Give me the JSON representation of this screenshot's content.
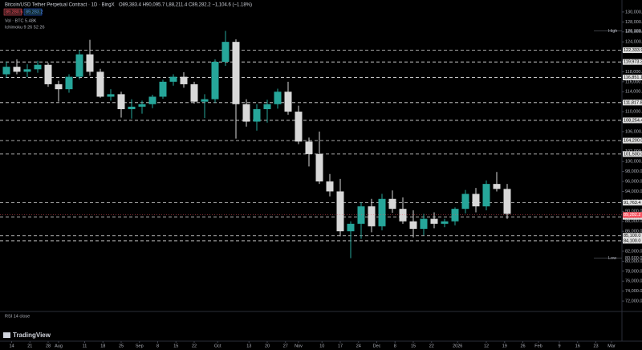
{
  "header": {
    "symbol": "Bitcoin/USD Tether Perpetual Contract · 1D · BingX",
    "ohlc": "O89,383.4 H90,095.7 L88,211.4 C89,282.2 −1,104.6 (−1.18%)",
    "sell": "89,280.5",
    "buy": "89,283.2",
    "volume": "Vol · BTC  5.48K",
    "indicator": "Ichimoku 9 26 52 26",
    "rsi": "RSI 14 close",
    "logo": "TradingView"
  },
  "chart_data": {
    "type": "candlestick",
    "up_color": "#26a69a",
    "down_color": "#d8d8d8",
    "ylim": [
      70400,
      132400
    ],
    "yticks": [
      {
        "value": 72000,
        "label": "72,000.0"
      },
      {
        "value": 74000,
        "label": "74,000.0"
      },
      {
        "value": 76000,
        "label": "76,000.0"
      },
      {
        "value": 78000,
        "label": "78,000.0"
      },
      {
        "value": 80000,
        "label": "80,000.0"
      },
      {
        "value": 82000,
        "label": "82,000.0"
      },
      {
        "value": 84000,
        "label": "84,000.0"
      },
      {
        "value": 86000,
        "label": "86,000.0"
      },
      {
        "value": 88000,
        "label": "88,000.0"
      },
      {
        "value": 90000,
        "label": "90,000.0"
      },
      {
        "value": 92000,
        "label": "92,000.0"
      },
      {
        "value": 94000,
        "label": "94,000.0"
      },
      {
        "value": 96000,
        "label": "96,000.0"
      },
      {
        "value": 98000,
        "label": "98,000.0"
      },
      {
        "value": 100000,
        "label": "100,000.0"
      },
      {
        "value": 102000,
        "label": "102,000.0"
      },
      {
        "value": 104000,
        "label": "104,000.0"
      },
      {
        "value": 106000,
        "label": "106,000.0"
      },
      {
        "value": 108000,
        "label": "108,000.0"
      },
      {
        "value": 110000,
        "label": "110,000.0"
      },
      {
        "value": 112000,
        "label": "112,000.0"
      },
      {
        "value": 114000,
        "label": "114,000.0"
      },
      {
        "value": 116000,
        "label": "116,000.0"
      },
      {
        "value": 118000,
        "label": "118,000.0"
      },
      {
        "value": 120000,
        "label": "120,000.0"
      },
      {
        "value": 122000,
        "label": "122,000.0"
      },
      {
        "value": 124000,
        "label": "124,000.0"
      },
      {
        "value": 126000,
        "label": "126,000.0"
      },
      {
        "value": 128000,
        "label": "128,000.0"
      },
      {
        "value": 130000,
        "label": "130,000.0"
      }
    ],
    "xticks": [
      {
        "value": "Jul 14",
        "label": "14"
      },
      {
        "value": "Jul 21",
        "label": "21"
      },
      {
        "value": "Jul 28",
        "label": "28"
      },
      {
        "value": "Aug 1",
        "label": "Aug"
      },
      {
        "value": "Aug 11",
        "label": "11"
      },
      {
        "value": "Aug 18",
        "label": "18"
      },
      {
        "value": "Aug 25",
        "label": "25"
      },
      {
        "value": "Sep 1",
        "label": "Sep"
      },
      {
        "value": "Sep 8",
        "label": "8"
      },
      {
        "value": "Sep 15",
        "label": "15"
      },
      {
        "value": "Sep 22",
        "label": "22"
      },
      {
        "value": "Oct 1",
        "label": "Oct"
      },
      {
        "value": "Oct 13",
        "label": "13"
      },
      {
        "value": "Oct 20",
        "label": "20"
      },
      {
        "value": "Oct 27",
        "label": "27"
      },
      {
        "value": "Nov 1",
        "label": "Nov"
      },
      {
        "value": "Nov 10",
        "label": "10"
      },
      {
        "value": "Nov 17",
        "label": "17"
      },
      {
        "value": "Nov 24",
        "label": "24"
      },
      {
        "value": "Dec 1",
        "label": "Dec"
      },
      {
        "value": "Dec 8",
        "label": "8"
      },
      {
        "value": "Dec 15",
        "label": "15"
      },
      {
        "value": "Dec 22",
        "label": "22"
      },
      {
        "value": "Jan 1",
        "label": "2026"
      },
      {
        "value": "Jan 12",
        "label": "12"
      },
      {
        "value": "Jan 19",
        "label": "19"
      },
      {
        "value": "Jan 26",
        "label": "26"
      },
      {
        "value": "Feb 1",
        "label": "Feb"
      },
      {
        "value": "Feb 9",
        "label": "9"
      },
      {
        "value": "Feb 16",
        "label": "16"
      },
      {
        "value": "Feb 23",
        "label": "23"
      },
      {
        "value": "Mar 1",
        "label": "Mar"
      }
    ],
    "x": [
      "Jul 12",
      "Jul 16",
      "Jul 20",
      "Jul 24",
      "Jul 28",
      "Aug 1",
      "Aug 5",
      "Aug 9",
      "Aug 13",
      "Aug 17",
      "Aug 21",
      "Aug 25",
      "Aug 29",
      "Sep 2",
      "Sep 6",
      "Sep 10",
      "Sep 14",
      "Sep 18",
      "Sep 22",
      "Sep 26",
      "Sep 30",
      "Oct 4",
      "Oct 8",
      "Oct 12",
      "Oct 16",
      "Oct 20",
      "Oct 24",
      "Oct 28",
      "Nov 1",
      "Nov 5",
      "Nov 9",
      "Nov 13",
      "Nov 17",
      "Nov 21",
      "Nov 25",
      "Nov 29",
      "Dec 3",
      "Dec 7",
      "Dec 11",
      "Dec 15",
      "Dec 19",
      "Dec 23",
      "Dec 27",
      "Dec 31",
      "Jan 4",
      "Jan 8",
      "Jan 12",
      "Jan 16",
      "Jan 20"
    ],
    "open": [
      117500,
      119000,
      118000,
      118500,
      119400,
      115500,
      114500,
      117000,
      121500,
      118000,
      113000,
      113500,
      110500,
      111000,
      111500,
      113000,
      116000,
      117000,
      115500,
      112000,
      112500,
      120000,
      124000,
      111500,
      108000,
      110500,
      111500,
      114000,
      110000,
      104000,
      101500,
      96000,
      94000,
      86000,
      87500,
      91000,
      87000,
      92500,
      90500,
      88000,
      86500,
      88500,
      87500,
      88000,
      90500,
      93500,
      91000,
      95500,
      94500
    ],
    "high": [
      120000,
      120500,
      119500,
      120200,
      119800,
      116200,
      117500,
      122300,
      124400,
      118600,
      114500,
      114000,
      112500,
      112200,
      113400,
      116400,
      117500,
      117900,
      116000,
      113500,
      120500,
      126200,
      124500,
      112500,
      111500,
      112400,
      114600,
      116000,
      111200,
      104800,
      106000,
      97500,
      96500,
      88000,
      91800,
      92500,
      93500,
      94200,
      92800,
      90200,
      89500,
      89800,
      88500,
      90800,
      94300,
      94700,
      96200,
      97900,
      95500
    ],
    "low": [
      116800,
      117500,
      116900,
      117800,
      115000,
      112000,
      113800,
      116500,
      117200,
      112800,
      112200,
      108800,
      108600,
      109600,
      110700,
      112600,
      115200,
      114800,
      111600,
      108700,
      111800,
      119200,
      104600,
      107000,
      106200,
      107800,
      110600,
      109400,
      103500,
      99000,
      95500,
      93000,
      85000,
      80600,
      84500,
      85800,
      86200,
      89700,
      87500,
      84800,
      85200,
      86600,
      86800,
      87200,
      89600,
      89800,
      90200,
      94000,
      88500
    ],
    "close": [
      119000,
      118000,
      118500,
      119400,
      115500,
      114500,
      117000,
      121500,
      118000,
      113000,
      113500,
      110500,
      111000,
      111500,
      113000,
      116000,
      117000,
      115500,
      112000,
      112500,
      120000,
      124000,
      111500,
      108000,
      110500,
      111500,
      114000,
      110000,
      104000,
      101500,
      96000,
      94000,
      86000,
      87500,
      91000,
      87000,
      92500,
      90500,
      88000,
      86500,
      88500,
      87500,
      88000,
      90500,
      93500,
      91000,
      95500,
      94500,
      89500
    ],
    "levels": [
      122333.9,
      119973.3,
      116851.1,
      111817.8,
      108254.4,
      104200,
      101500,
      91763.4,
      88900,
      85100,
      84100
    ],
    "levels_labels": [
      "122,333.9",
      "119,973.3",
      "116,851.1",
      "111,817.8",
      "108,254.4",
      "104,200.0",
      "101,500.0",
      "91,763.4",
      "88,900.0",
      "85,100.0",
      "84,100.0"
    ],
    "high_mark": {
      "text": "High",
      "value": 126199,
      "label": "126,199.0"
    },
    "low_mark": {
      "text": "Low",
      "value": 80600,
      "label": "80,600.0"
    },
    "last_price": {
      "value": 89282.2,
      "label": "89,282.2",
      "color": "#f7525f"
    }
  }
}
